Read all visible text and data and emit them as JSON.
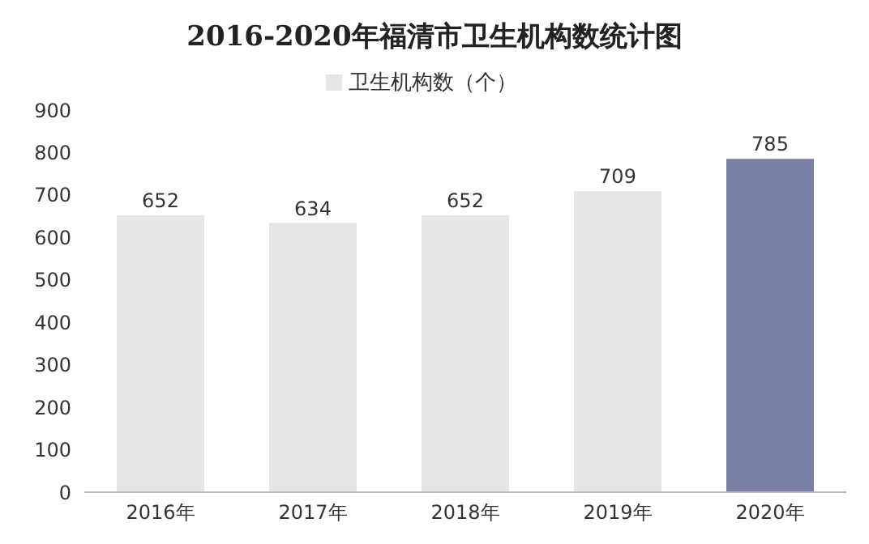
{
  "chart_data": {
    "type": "bar",
    "title": "2016-2020年福清市卫生机构数统计图",
    "categories": [
      "2016年",
      "2017年",
      "2018年",
      "2019年",
      "2020年"
    ],
    "series": [
      {
        "name": "卫生机构数（个）",
        "color": "#e6e6e6",
        "colors": [
          "#e6e6e6",
          "#e6e6e6",
          "#e6e6e6",
          "#e6e6e6",
          "#7a7fa5"
        ],
        "values": [
          652,
          634,
          652,
          709,
          785
        ]
      }
    ],
    "ylim": [
      0,
      900
    ],
    "yticks": [
      0,
      100,
      200,
      300,
      400,
      500,
      600,
      700,
      800,
      900
    ],
    "grid": false,
    "legend": "top",
    "data_labels": true
  }
}
